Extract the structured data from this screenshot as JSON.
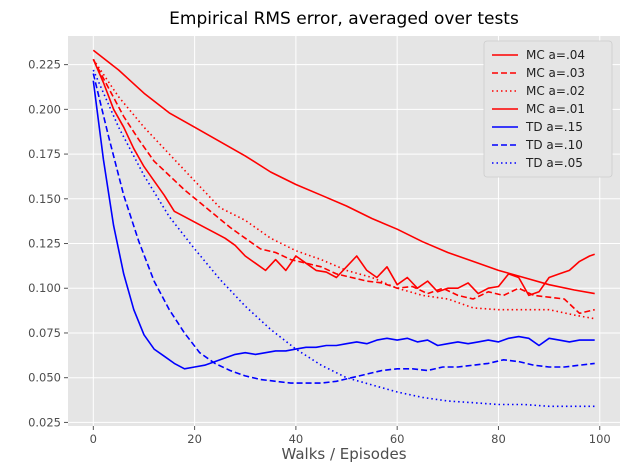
{
  "chart_data": {
    "type": "line",
    "title": "Empirical RMS error, averaged over tests",
    "xlabel": "Walks / Episodes",
    "ylabel": "",
    "xlim": [
      -5,
      104
    ],
    "ylim": [
      0.023,
      0.241
    ],
    "xticks": [
      0,
      20,
      40,
      60,
      80,
      100
    ],
    "xtick_labels": [
      "0",
      "20",
      "40",
      "60",
      "80",
      "100"
    ],
    "yticks": [
      0.025,
      0.05,
      0.075,
      0.1,
      0.125,
      0.15,
      0.175,
      0.2,
      0.225
    ],
    "ytick_labels": [
      "0.025",
      "0.050",
      "0.075",
      "0.100",
      "0.125",
      "0.150",
      "0.175",
      "0.200",
      "0.225"
    ],
    "grid": true,
    "legend_position": "top-right",
    "series": [
      {
        "name": "MC a=.04",
        "color": "#ff0000",
        "dash": "solid",
        "x": [
          0,
          5,
          10,
          15,
          20,
          25,
          30,
          35,
          40,
          45,
          50,
          55,
          60,
          65,
          70,
          75,
          80,
          85,
          90,
          95,
          99
        ],
        "y": [
          0.233,
          0.222,
          0.209,
          0.198,
          0.19,
          0.182,
          0.174,
          0.165,
          0.158,
          0.152,
          0.146,
          0.139,
          0.133,
          0.126,
          0.12,
          0.115,
          0.11,
          0.106,
          0.102,
          0.099,
          0.097
        ]
      },
      {
        "name": "MC a=.03",
        "color": "#ff0000",
        "dash": "dashed",
        "x": [
          0,
          3,
          6,
          9,
          12,
          15,
          18,
          21,
          24,
          27,
          30,
          33,
          36,
          39,
          42,
          45,
          48,
          51,
          54,
          57,
          60,
          63,
          66,
          69,
          72,
          75,
          78,
          81,
          84,
          87,
          90,
          93,
          96,
          99
        ],
        "y": [
          0.228,
          0.212,
          0.196,
          0.183,
          0.171,
          0.163,
          0.155,
          0.148,
          0.141,
          0.134,
          0.128,
          0.122,
          0.12,
          0.116,
          0.114,
          0.112,
          0.108,
          0.106,
          0.104,
          0.103,
          0.1,
          0.101,
          0.097,
          0.1,
          0.096,
          0.094,
          0.098,
          0.096,
          0.1,
          0.096,
          0.095,
          0.094,
          0.086,
          0.088
        ]
      },
      {
        "name": "MC a=.02",
        "color": "#ff0000",
        "dash": "dotted",
        "x": [
          0,
          5,
          10,
          15,
          20,
          25,
          30,
          35,
          40,
          45,
          50,
          55,
          60,
          65,
          70,
          75,
          80,
          85,
          90,
          95,
          99
        ],
        "y": [
          0.228,
          0.207,
          0.19,
          0.175,
          0.16,
          0.145,
          0.138,
          0.128,
          0.121,
          0.116,
          0.11,
          0.106,
          0.1,
          0.096,
          0.094,
          0.089,
          0.088,
          0.088,
          0.088,
          0.085,
          0.083
        ]
      },
      {
        "name": "MC a=.01",
        "color": "#ff0000",
        "dash": "solid",
        "x": [
          0,
          2,
          4,
          6,
          8,
          10,
          12,
          14,
          16,
          18,
          20,
          22,
          24,
          26,
          28,
          30,
          32,
          34,
          36,
          38,
          40,
          42,
          44,
          46,
          48,
          50,
          52,
          54,
          56,
          58,
          60,
          62,
          64,
          66,
          68,
          70,
          72,
          74,
          76,
          78,
          80,
          82,
          84,
          86,
          88,
          90,
          92,
          94,
          96,
          98,
          99
        ],
        "y": [
          0.228,
          0.215,
          0.2,
          0.19,
          0.178,
          0.168,
          0.16,
          0.152,
          0.143,
          0.14,
          0.137,
          0.134,
          0.131,
          0.128,
          0.124,
          0.118,
          0.114,
          0.11,
          0.116,
          0.11,
          0.118,
          0.114,
          0.11,
          0.109,
          0.106,
          0.112,
          0.118,
          0.11,
          0.106,
          0.112,
          0.102,
          0.106,
          0.1,
          0.104,
          0.098,
          0.1,
          0.1,
          0.103,
          0.097,
          0.1,
          0.101,
          0.108,
          0.106,
          0.096,
          0.098,
          0.106,
          0.108,
          0.11,
          0.115,
          0.118,
          0.119
        ]
      },
      {
        "name": "TD a=.15",
        "color": "#0000ff",
        "dash": "solid",
        "x": [
          0,
          2,
          4,
          6,
          8,
          10,
          12,
          14,
          16,
          18,
          20,
          22,
          24,
          26,
          28,
          30,
          32,
          34,
          36,
          38,
          40,
          42,
          44,
          46,
          48,
          50,
          52,
          54,
          56,
          58,
          60,
          62,
          64,
          66,
          68,
          70,
          72,
          74,
          76,
          78,
          80,
          82,
          84,
          86,
          88,
          90,
          92,
          94,
          96,
          98,
          99
        ],
        "y": [
          0.216,
          0.172,
          0.135,
          0.108,
          0.088,
          0.074,
          0.066,
          0.062,
          0.058,
          0.055,
          0.056,
          0.057,
          0.059,
          0.061,
          0.063,
          0.064,
          0.063,
          0.064,
          0.065,
          0.065,
          0.066,
          0.067,
          0.067,
          0.068,
          0.068,
          0.069,
          0.07,
          0.069,
          0.071,
          0.072,
          0.071,
          0.072,
          0.07,
          0.071,
          0.068,
          0.069,
          0.07,
          0.069,
          0.07,
          0.071,
          0.07,
          0.072,
          0.073,
          0.072,
          0.068,
          0.072,
          0.071,
          0.07,
          0.071,
          0.071,
          0.071
        ]
      },
      {
        "name": "TD a=.10",
        "color": "#0000ff",
        "dash": "dashed",
        "x": [
          0,
          3,
          6,
          9,
          12,
          15,
          18,
          21,
          24,
          27,
          30,
          33,
          36,
          39,
          42,
          45,
          48,
          51,
          54,
          57,
          60,
          63,
          66,
          69,
          72,
          75,
          78,
          81,
          84,
          87,
          90,
          93,
          96,
          99
        ],
        "y": [
          0.22,
          0.185,
          0.152,
          0.126,
          0.104,
          0.088,
          0.075,
          0.064,
          0.058,
          0.054,
          0.051,
          0.049,
          0.048,
          0.047,
          0.047,
          0.047,
          0.048,
          0.05,
          0.052,
          0.054,
          0.055,
          0.055,
          0.054,
          0.056,
          0.056,
          0.057,
          0.058,
          0.06,
          0.059,
          0.057,
          0.056,
          0.056,
          0.057,
          0.058
        ]
      },
      {
        "name": "TD a=.05",
        "color": "#0000ff",
        "dash": "dotted",
        "x": [
          0,
          5,
          10,
          15,
          20,
          25,
          30,
          35,
          40,
          45,
          50,
          55,
          60,
          65,
          70,
          75,
          80,
          85,
          90,
          95,
          99
        ],
        "y": [
          0.222,
          0.19,
          0.163,
          0.14,
          0.122,
          0.105,
          0.09,
          0.077,
          0.066,
          0.057,
          0.05,
          0.046,
          0.042,
          0.039,
          0.037,
          0.036,
          0.035,
          0.035,
          0.034,
          0.034,
          0.034
        ]
      }
    ]
  }
}
